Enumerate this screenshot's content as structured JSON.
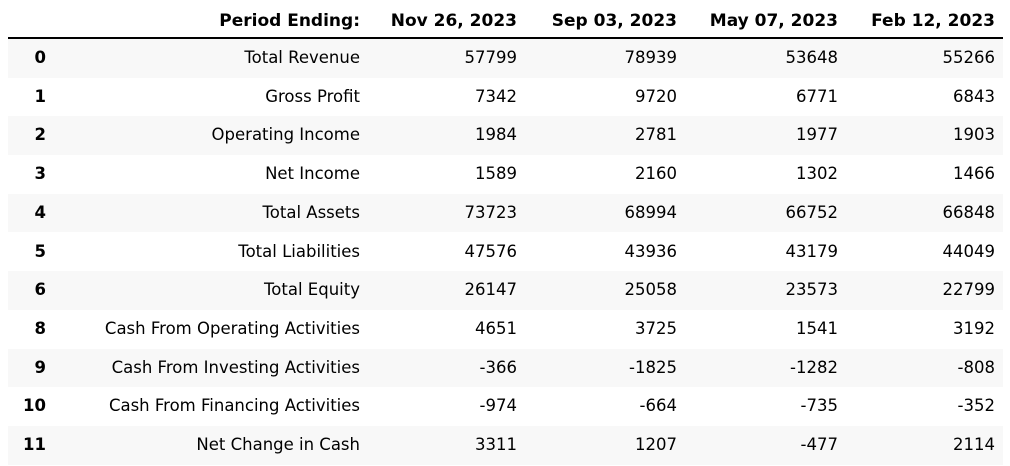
{
  "chart_data": {
    "type": "table",
    "title": "",
    "index_header": "",
    "label_header": "Period Ending:",
    "columns": [
      "Nov 26, 2023",
      "Sep 03, 2023",
      "May 07, 2023",
      "Feb 12, 2023"
    ],
    "rows": [
      {
        "index": "0",
        "label": "Total Revenue",
        "values": [
          "57799",
          "78939",
          "53648",
          "55266"
        ]
      },
      {
        "index": "1",
        "label": "Gross Profit",
        "values": [
          "7342",
          "9720",
          "6771",
          "6843"
        ]
      },
      {
        "index": "2",
        "label": "Operating Income",
        "values": [
          "1984",
          "2781",
          "1977",
          "1903"
        ]
      },
      {
        "index": "3",
        "label": "Net Income",
        "values": [
          "1589",
          "2160",
          "1302",
          "1466"
        ]
      },
      {
        "index": "4",
        "label": "Total Assets",
        "values": [
          "73723",
          "68994",
          "66752",
          "66848"
        ]
      },
      {
        "index": "5",
        "label": "Total Liabilities",
        "values": [
          "47576",
          "43936",
          "43179",
          "44049"
        ]
      },
      {
        "index": "6",
        "label": "Total Equity",
        "values": [
          "26147",
          "25058",
          "23573",
          "22799"
        ]
      },
      {
        "index": "8",
        "label": "Cash From Operating Activities",
        "values": [
          "4651",
          "3725",
          "1541",
          "3192"
        ]
      },
      {
        "index": "9",
        "label": "Cash From Investing Activities",
        "values": [
          "-366",
          "-1825",
          "-1282",
          "-808"
        ]
      },
      {
        "index": "10",
        "label": "Cash From Financing Activities",
        "values": [
          "-974",
          "-664",
          "-735",
          "-352"
        ]
      },
      {
        "index": "11",
        "label": "Net Change in Cash",
        "values": [
          "3311",
          "1207",
          "-477",
          "2114"
        ]
      }
    ],
    "colors": {
      "text": "#000000",
      "background": "#ffffff",
      "stripe": "#f8f8f8",
      "header_rule": "#000000"
    },
    "layout": {
      "grid": "off",
      "header_bold": true,
      "index_bold": true,
      "values_align": "right"
    }
  }
}
